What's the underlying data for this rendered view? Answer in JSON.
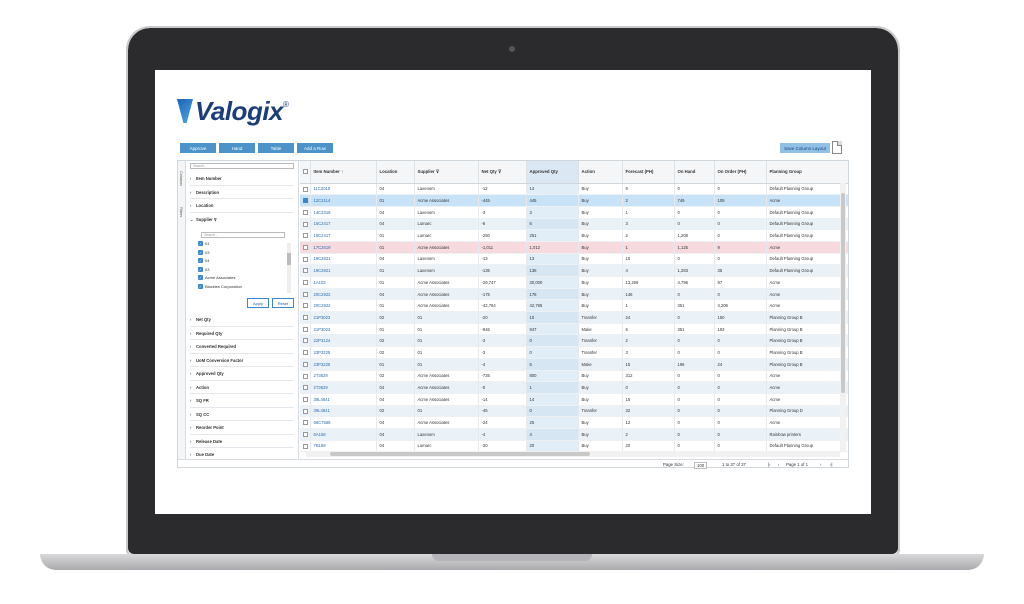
{
  "brand": {
    "name": "Valogix",
    "reg": "®"
  },
  "toolbar": {
    "buttons": [
      "Approve",
      "Hand",
      "Table",
      "Add a Row"
    ],
    "save_layout": "Save Column Layout"
  },
  "side_tabs": [
    "Columns",
    "Filters"
  ],
  "filters": {
    "search_placeholder": "Search...",
    "items_top": [
      "Item Number",
      "Description",
      "Location"
    ],
    "supplier_label": "Supplier",
    "supplier_search": "Search...",
    "supplier_options": [
      "01",
      "03",
      "04",
      "03",
      "Acme Associates",
      "Blackies Corporation"
    ],
    "apply": "Apply",
    "reset": "Reset",
    "items_bottom": [
      "Net Qty",
      "Required Qty",
      "Converted Required",
      "UoM Conversion Factor",
      "Approved Qty",
      "Action",
      "SQ FR",
      "SQ CC",
      "Reorder Point",
      "Release Date",
      "Due Date"
    ]
  },
  "grid": {
    "columns": [
      "",
      "Item Number",
      "Location",
      "Supplier",
      "Net Qty",
      "Approved Qty",
      "Action",
      "Forecast (PH)",
      "On Hand",
      "On Order (PH)",
      "Planning Group"
    ],
    "rows": [
      [
        "11C2015",
        "04",
        "Laxenom",
        "-12",
        "14",
        "Buy",
        "9",
        "0",
        "0",
        "Default Planning Group"
      ],
      [
        "12C2114",
        "01",
        "Acme Associates",
        "-445",
        "445",
        "Buy",
        "2",
        "749",
        "109",
        "Acme"
      ],
      [
        "14C2316",
        "04",
        "Laxenom",
        "-3",
        "3",
        "Buy",
        "1",
        "0",
        "0",
        "Default Planning Group"
      ],
      [
        "15C2417",
        "04",
        "Lumarc",
        "-6",
        "6",
        "Buy",
        "3",
        "0",
        "0",
        "Default Planning Group"
      ],
      [
        "15C2417",
        "01",
        "Lumarc",
        "-250",
        "251",
        "Buy",
        "2",
        "1,208",
        "0",
        "Default Planning Group"
      ],
      [
        "17C2619",
        "01",
        "Acme Associates",
        "-1,011",
        "1,012",
        "Buy",
        "1",
        "1,125",
        "9",
        "Acme"
      ],
      [
        "19C2821",
        "04",
        "Laxenom",
        "-13",
        "13",
        "Buy",
        "10",
        "0",
        "0",
        "Default Planning Group"
      ],
      [
        "19C2821",
        "01",
        "Laxenom",
        "-135",
        "136",
        "Buy",
        "4",
        "1,283",
        "35",
        "Default Planning Group"
      ],
      [
        "1A103",
        "01",
        "Acme Associates",
        "-29,747",
        "30,000",
        "Buy",
        "13,269",
        "4,796",
        "97",
        "Acme"
      ],
      [
        "20C2922",
        "04",
        "Acme Associates",
        "-175",
        "176",
        "Buy",
        "146",
        "0",
        "0",
        "Acme"
      ],
      [
        "20C2922",
        "01",
        "Acme Associates",
        "-42,764",
        "42,765",
        "Buy",
        "1",
        "351",
        "4,206",
        "Acme"
      ],
      [
        "21P3023",
        "02",
        "01",
        "-20",
        "10",
        "Transfer",
        "24",
        "0",
        "150",
        "Planning Group B"
      ],
      [
        "21P3023",
        "01",
        "01",
        "-946",
        "947",
        "Make",
        "6",
        "351",
        "193",
        "Planning Group B"
      ],
      [
        "22P3124",
        "02",
        "01",
        "-3",
        "0",
        "Transfer",
        "2",
        "0",
        "0",
        "Planning Group B"
      ],
      [
        "23P3225",
        "02",
        "01",
        "-3",
        "0",
        "Transfer",
        "3",
        "0",
        "0",
        "Planning Group B"
      ],
      [
        "23P3225",
        "01",
        "01",
        "-4",
        "6",
        "Make",
        "15",
        "196",
        "24",
        "Planning Group B"
      ],
      [
        "2T3629",
        "02",
        "Acme Associates",
        "-735",
        "800",
        "Buy",
        "312",
        "0",
        "0",
        "Acme"
      ],
      [
        "2T3629",
        "04",
        "Acme Associates",
        "-0",
        "1",
        "Buy",
        "0",
        "0",
        "0",
        "Acme"
      ],
      [
        "39L4841",
        "04",
        "Acme Associates",
        "-14",
        "14",
        "Buy",
        "15",
        "0",
        "0",
        "Acme"
      ],
      [
        "39L4841",
        "02",
        "01",
        "-45",
        "0",
        "Transfer",
        "32",
        "0",
        "0",
        "Planning Group D"
      ],
      [
        "66C7568",
        "04",
        "Acme Associates",
        "-24",
        "25",
        "Buy",
        "12",
        "0",
        "0",
        "Acme"
      ],
      [
        "6A158",
        "04",
        "Laxenom",
        "-4",
        "4",
        "Buy",
        "2",
        "0",
        "0",
        "Rainbow printers"
      ],
      [
        "7B169",
        "04",
        "Lumarc",
        "-20",
        "20",
        "Buy",
        "20",
        "0",
        "0",
        "Default Planning Group"
      ]
    ]
  },
  "pager": {
    "page_size_label": "Page Size:",
    "page_size": "100",
    "range": "1 to 37 of 37",
    "page_label": "Page 1 of 1"
  }
}
